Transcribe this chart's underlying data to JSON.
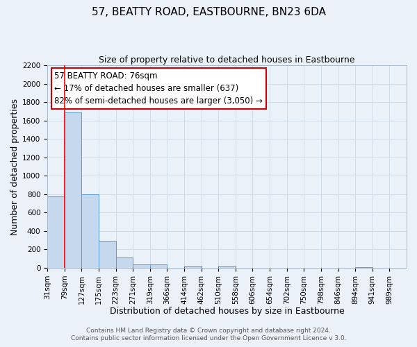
{
  "title": "57, BEATTY ROAD, EASTBOURNE, BN23 6DA",
  "subtitle": "Size of property relative to detached houses in Eastbourne",
  "xlabel": "Distribution of detached houses by size in Eastbourne",
  "ylabel": "Number of detached properties",
  "footer_line1": "Contains HM Land Registry data © Crown copyright and database right 2024.",
  "footer_line2": "Contains public sector information licensed under the Open Government Licence v 3.0.",
  "annotation_title": "57 BEATTY ROAD: 76sqm",
  "annotation_line1": "← 17% of detached houses are smaller (637)",
  "annotation_line2": "82% of semi-detached houses are larger (3,050) →",
  "bar_values": [
    780,
    1690,
    800,
    295,
    110,
    40,
    35,
    0,
    25,
    0,
    20,
    0,
    0,
    0,
    0,
    0,
    0,
    0,
    5,
    0,
    0
  ],
  "bin_labels": [
    "31sqm",
    "79sqm",
    "127sqm",
    "175sqm",
    "223sqm",
    "271sqm",
    "319sqm",
    "366sqm",
    "414sqm",
    "462sqm",
    "510sqm",
    "558sqm",
    "606sqm",
    "654sqm",
    "702sqm",
    "750sqm",
    "798sqm",
    "846sqm",
    "894sqm",
    "941sqm",
    "989sqm"
  ],
  "bar_color": "#c5d8ed",
  "bar_edge_color": "#5b9bd5",
  "red_line_x": 1,
  "ylim": [
    0,
    2200
  ],
  "yticks": [
    0,
    200,
    400,
    600,
    800,
    1000,
    1200,
    1400,
    1600,
    1800,
    2000,
    2200
  ],
  "grid_color": "#d0dce8",
  "background_color": "#eaf1f8",
  "annotation_box_color": "#ffffff",
  "annotation_box_edge": "#cc0000",
  "title_fontsize": 11,
  "subtitle_fontsize": 9,
  "axis_label_fontsize": 9,
  "tick_fontsize": 7.5,
  "annotation_fontsize": 8.5,
  "footer_fontsize": 6.5
}
